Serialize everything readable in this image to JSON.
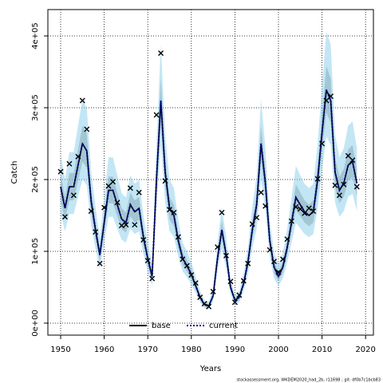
{
  "chart_data": {
    "type": "line",
    "xlabel": "Years",
    "ylabel": "Catch",
    "footer": "stockassessment.org, WKDEM2020_had_2b, r11698 ; git: df0b7c1bcb83",
    "x": [
      1950,
      1951,
      1952,
      1953,
      1954,
      1955,
      1956,
      1957,
      1958,
      1959,
      1960,
      1961,
      1962,
      1963,
      1964,
      1965,
      1966,
      1967,
      1968,
      1969,
      1970,
      1971,
      1972,
      1973,
      1974,
      1975,
      1976,
      1977,
      1978,
      1979,
      1980,
      1981,
      1982,
      1983,
      1984,
      1985,
      1986,
      1987,
      1988,
      1989,
      1990,
      1991,
      1992,
      1993,
      1994,
      1995,
      1996,
      1997,
      1998,
      1999,
      2000,
      2001,
      2002,
      2003,
      2004,
      2005,
      2006,
      2007,
      2008,
      2009,
      2010,
      2011,
      2012,
      2013,
      2014,
      2015,
      2016,
      2017,
      2018
    ],
    "series": [
      {
        "name": "base",
        "color": "#000000",
        "band_color": "#808080",
        "values": [
          190000,
          160000,
          190000,
          190000,
          220000,
          250000,
          240000,
          170000,
          130000,
          95000,
          140000,
          185000,
          185000,
          165000,
          145000,
          140000,
          165000,
          155000,
          160000,
          120000,
          90000,
          65000,
          200000,
          310000,
          210000,
          160000,
          150000,
          115000,
          90000,
          80000,
          68000,
          52000,
          36000,
          26000,
          24000,
          38000,
          90000,
          130000,
          95000,
          50000,
          32000,
          36000,
          55000,
          85000,
          130000,
          165000,
          250000,
          195000,
          115000,
          78000,
          65000,
          78000,
          105000,
          140000,
          175000,
          165000,
          155000,
          150000,
          155000,
          200000,
          265000,
          325000,
          310000,
          210000,
          185000,
          195000,
          220000,
          225000,
          195000
        ],
        "lower": [
          171000,
          144000,
          171000,
          171000,
          198000,
          225000,
          216000,
          153000,
          117000,
          86000,
          126000,
          167000,
          167000,
          149000,
          131000,
          126000,
          149000,
          140000,
          144000,
          108000,
          81000,
          59000,
          180000,
          279000,
          189000,
          144000,
          135000,
          104000,
          81000,
          72000,
          61000,
          47000,
          32000,
          23000,
          22000,
          34000,
          81000,
          117000,
          86000,
          45000,
          29000,
          32000,
          50000,
          77000,
          117000,
          149000,
          225000,
          176000,
          104000,
          70000,
          59000,
          70000,
          95000,
          126000,
          158000,
          149000,
          140000,
          135000,
          140000,
          180000,
          239000,
          293000,
          279000,
          189000,
          167000,
          176000,
          198000,
          203000,
          176000
        ],
        "upper": [
          209000,
          176000,
          209000,
          209000,
          242000,
          275000,
          264000,
          187000,
          143000,
          105000,
          154000,
          204000,
          204000,
          182000,
          160000,
          154000,
          182000,
          171000,
          176000,
          132000,
          99000,
          72000,
          220000,
          341000,
          231000,
          176000,
          165000,
          127000,
          99000,
          88000,
          75000,
          57000,
          40000,
          29000,
          26000,
          42000,
          99000,
          143000,
          105000,
          55000,
          35000,
          40000,
          61000,
          94000,
          143000,
          182000,
          275000,
          215000,
          127000,
          86000,
          72000,
          86000,
          116000,
          154000,
          193000,
          182000,
          171000,
          165000,
          171000,
          220000,
          292000,
          358000,
          341000,
          231000,
          204000,
          215000,
          242000,
          248000,
          215000
        ]
      },
      {
        "name": "current",
        "color": "#00008b",
        "band_color": "#87ceeb",
        "values": [
          190000,
          160000,
          190000,
          190000,
          220000,
          250000,
          240000,
          170000,
          130000,
          95000,
          140000,
          185000,
          185000,
          165000,
          145000,
          140000,
          165000,
          155000,
          160000,
          120000,
          90000,
          65000,
          200000,
          310000,
          210000,
          160000,
          150000,
          115000,
          90000,
          80000,
          68000,
          52000,
          36000,
          26000,
          24000,
          38000,
          90000,
          130000,
          95000,
          50000,
          32000,
          36000,
          55000,
          85000,
          130000,
          165000,
          250000,
          195000,
          115000,
          78000,
          65000,
          78000,
          105000,
          140000,
          175000,
          165000,
          155000,
          150000,
          155000,
          200000,
          265000,
          325000,
          310000,
          210000,
          185000,
          195000,
          220000,
          225000,
          195000
        ],
        "lower": [
          152000,
          128000,
          152000,
          152000,
          176000,
          200000,
          192000,
          136000,
          104000,
          76000,
          112000,
          148000,
          148000,
          132000,
          116000,
          112000,
          132000,
          124000,
          128000,
          96000,
          72000,
          52000,
          160000,
          248000,
          168000,
          128000,
          120000,
          92000,
          72000,
          64000,
          54000,
          42000,
          29000,
          21000,
          19000,
          30000,
          72000,
          104000,
          76000,
          40000,
          26000,
          29000,
          44000,
          68000,
          104000,
          132000,
          200000,
          156000,
          92000,
          62000,
          52000,
          62000,
          84000,
          112000,
          140000,
          132000,
          124000,
          120000,
          124000,
          160000,
          212000,
          260000,
          248000,
          168000,
          148000,
          156000,
          176000,
          180000,
          156000
        ],
        "upper": [
          238000,
          200000,
          238000,
          238000,
          275000,
          312000,
          300000,
          212000,
          162000,
          119000,
          175000,
          231000,
          231000,
          206000,
          181000,
          175000,
          206000,
          194000,
          200000,
          150000,
          112000,
          81000,
          250000,
          388000,
          262000,
          200000,
          188000,
          144000,
          112000,
          100000,
          85000,
          65000,
          45000,
          32000,
          30000,
          48000,
          112000,
          162000,
          119000,
          62000,
          40000,
          45000,
          69000,
          106000,
          162000,
          206000,
          312000,
          244000,
          144000,
          98000,
          81000,
          98000,
          131000,
          175000,
          219000,
          206000,
          194000,
          188000,
          194000,
          250000,
          331000,
          406000,
          388000,
          262000,
          231000,
          244000,
          275000,
          281000,
          244000
        ]
      }
    ],
    "observed": {
      "color": "#000000",
      "values": [
        211000,
        148000,
        222000,
        178000,
        232000,
        310000,
        270000,
        156000,
        127000,
        83000,
        161000,
        191000,
        197000,
        168000,
        136000,
        137000,
        188000,
        137000,
        182000,
        116000,
        87000,
        62000,
        290000,
        376000,
        198000,
        158000,
        154000,
        120000,
        89000,
        80000,
        67000,
        56000,
        36000,
        27000,
        23000,
        44000,
        106000,
        154000,
        94000,
        58000,
        29000,
        39000,
        59000,
        83000,
        138000,
        147000,
        182000,
        163000,
        102000,
        86000,
        71000,
        89000,
        117000,
        142000,
        162000,
        159000,
        153000,
        160000,
        156000,
        201000,
        250000,
        310000,
        316000,
        192000,
        178000,
        193000,
        233000,
        227000,
        190000
      ]
    },
    "xlim": [
      1947.07,
      2021.8
    ],
    "ylim": [
      -16700,
      436700
    ],
    "xticks": [
      1950,
      1960,
      1970,
      1980,
      1990,
      2000,
      2010,
      2020
    ],
    "yticks": [
      {
        "value": 0,
        "label": "0e+00"
      },
      {
        "value": 100000,
        "label": "1e+05"
      },
      {
        "value": 200000,
        "label": "2e+05"
      },
      {
        "value": 300000,
        "label": "3e+05"
      },
      {
        "value": 400000,
        "label": "4e+05"
      }
    ],
    "grid": true,
    "legend": "bottom"
  }
}
